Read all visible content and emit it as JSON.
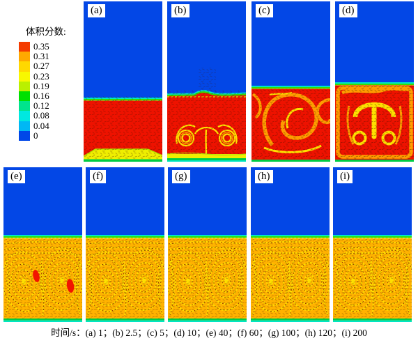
{
  "legend": {
    "title": "体积分数:",
    "entries": [
      {
        "label": "0.35",
        "color": "#f43b00"
      },
      {
        "label": "0.31",
        "color": "#ffa800"
      },
      {
        "label": "0.27",
        "color": "#ffd800"
      },
      {
        "label": "0.23",
        "color": "#f8f800"
      },
      {
        "label": "0.19",
        "color": "#baf000"
      },
      {
        "label": "0.16",
        "color": "#00e000"
      },
      {
        "label": "0.12",
        "color": "#00e48c"
      },
      {
        "label": "0.08",
        "color": "#00e8e0"
      },
      {
        "label": "0.04",
        "color": "#00b8f4"
      },
      {
        "label": "0",
        "color": "#0047e8"
      }
    ]
  },
  "panels": [
    {
      "label": "(a)",
      "time_s": "1"
    },
    {
      "label": "(b)",
      "time_s": "2.5"
    },
    {
      "label": "(c)",
      "time_s": "5"
    },
    {
      "label": "(d)",
      "time_s": "10"
    },
    {
      "label": "(e)",
      "time_s": "40"
    },
    {
      "label": "(f)",
      "time_s": "60"
    },
    {
      "label": "(g)",
      "time_s": "100"
    },
    {
      "label": "(h)",
      "time_s": "120"
    },
    {
      "label": "(i)",
      "time_s": "200"
    }
  ],
  "caption": "时间/s：(a) 1；(b) 2.5；(c) 5；(d) 10；(e) 40；(f) 60；(g) 100；(h) 120；(i) 200",
  "colors": {
    "water_blue": "#0347e6",
    "slurry_red": "#ee1200",
    "slurry_orange": "#ffb200",
    "swirl_yellow": "#ffdf00",
    "vortex_orange": "#ff9c00",
    "interface_cyan": "#00e6c4",
    "interface_green": "#35dc00",
    "bottom_green": "#00cc44",
    "band_yellow": "#efee00",
    "arrow_dark": "#3c1202",
    "blob_red": "#f21500"
  },
  "chart_data": {
    "type": "heatmap",
    "title": "体积分数",
    "colorbar_ticks": [
      "0.35",
      "0.31",
      "0.27",
      "0.23",
      "0.19",
      "0.16",
      "0.12",
      "0.08",
      "0.04",
      "0"
    ],
    "value_range": [
      0,
      0.35
    ],
    "panel_times_s": {
      "a": 1,
      "b": 2.5,
      "c": 5,
      "d": 10,
      "e": 40,
      "f": 60,
      "g": 100,
      "h": 120,
      "i": 200
    },
    "layout": {
      "rows": 2,
      "top_row": [
        "a",
        "b",
        "c",
        "d"
      ],
      "bottom_row": [
        "e",
        "f",
        "g",
        "h",
        "i"
      ],
      "legend_position": "left"
    }
  }
}
